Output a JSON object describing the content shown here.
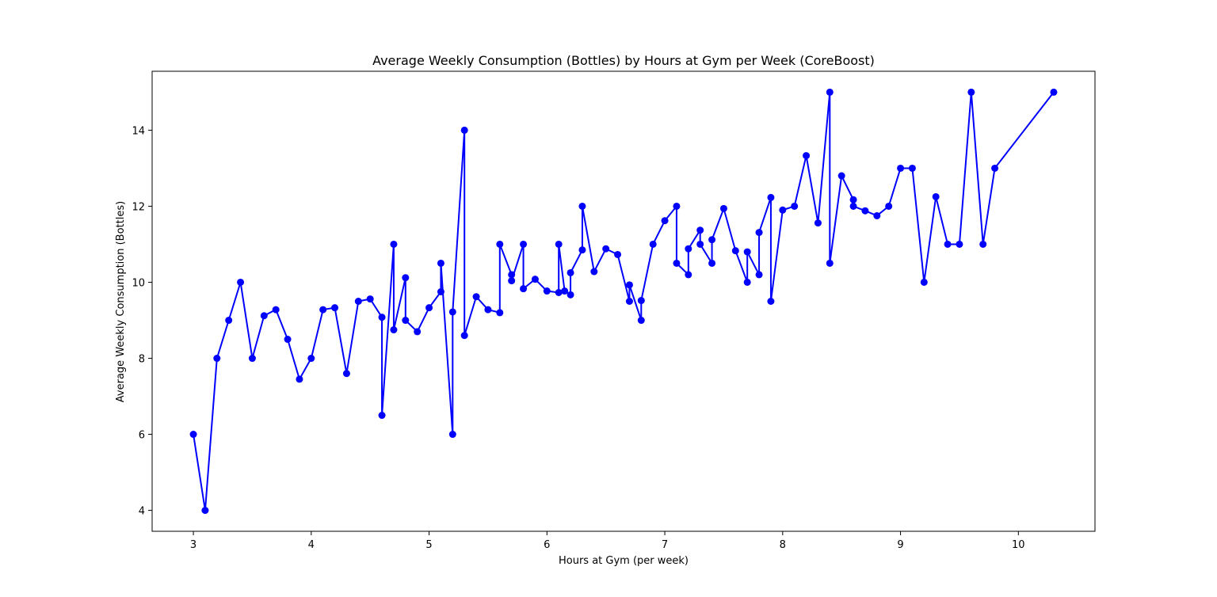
{
  "chart_data": {
    "type": "line",
    "title": "Average Weekly Consumption (Bottles) by Hours at Gym per Week (CoreBoost)",
    "xlabel": "Hours at Gym (per week)",
    "ylabel": "Average Weekly Consumption (Bottles)",
    "xlim": [
      2.65,
      10.65
    ],
    "ylim": [
      3.45,
      15.55
    ],
    "xticks": [
      3,
      4,
      5,
      6,
      7,
      8,
      9,
      10
    ],
    "yticks": [
      4,
      6,
      8,
      10,
      12,
      14
    ],
    "grid": false,
    "marker": "circle",
    "color": "#0000ff",
    "series": [
      {
        "x": [
          3.0,
          3.1,
          3.2,
          3.3,
          3.4,
          3.5,
          3.6,
          3.7,
          3.8,
          3.9,
          4.0,
          4.1,
          4.2,
          4.3,
          4.4,
          4.5,
          4.6,
          4.6,
          4.7,
          4.7,
          4.8,
          4.8,
          4.9,
          5.0,
          5.1,
          5.1,
          5.2,
          5.2,
          5.3,
          5.3,
          5.4,
          5.5,
          5.6,
          5.6,
          5.7,
          5.7,
          5.8,
          5.8,
          5.9,
          6.0,
          6.1,
          6.1,
          6.15,
          6.2,
          6.2,
          6.3,
          6.3,
          6.4,
          6.5,
          6.6,
          6.7,
          6.7,
          6.8,
          6.8,
          6.9,
          7.0,
          7.1,
          7.1,
          7.2,
          7.2,
          7.3,
          7.3,
          7.4,
          7.4,
          7.5,
          7.6,
          7.7,
          7.7,
          7.8,
          7.8,
          7.9,
          7.9,
          8.0,
          8.1,
          8.2,
          8.3,
          8.4,
          8.4,
          8.5,
          8.6,
          8.6,
          8.7,
          8.8,
          8.9,
          9.0,
          9.1,
          9.2,
          9.3,
          9.4,
          9.5,
          9.6,
          9.7,
          9.8,
          10.3
        ],
        "y": [
          6.0,
          4.0,
          8.0,
          9.0,
          10.0,
          8.0,
          9.12,
          9.28,
          8.5,
          7.45,
          8.0,
          9.28,
          9.33,
          7.6,
          9.5,
          9.56,
          9.08,
          6.5,
          11.0,
          8.75,
          10.12,
          9.0,
          8.7,
          9.33,
          9.75,
          10.5,
          6.0,
          9.22,
          14.0,
          8.6,
          9.62,
          9.28,
          9.2,
          11.0,
          10.2,
          10.04,
          11.0,
          9.83,
          10.08,
          9.77,
          9.73,
          11.0,
          9.77,
          9.67,
          10.25,
          10.85,
          12.0,
          10.28,
          10.88,
          10.73,
          9.5,
          9.93,
          9.0,
          9.52,
          11.0,
          11.62,
          12.0,
          10.5,
          10.2,
          10.88,
          11.37,
          11.0,
          10.5,
          11.12,
          11.94,
          10.83,
          10.0,
          10.8,
          10.2,
          11.31,
          12.23,
          9.5,
          11.9,
          12.0,
          13.33,
          11.56,
          15.0,
          10.5,
          12.8,
          12.17,
          12.0,
          11.88,
          11.75,
          12.0,
          13.0,
          13.0,
          10.0,
          12.25,
          11.0,
          11.0,
          15.0,
          11.0,
          13.0,
          15.0
        ]
      }
    ]
  }
}
